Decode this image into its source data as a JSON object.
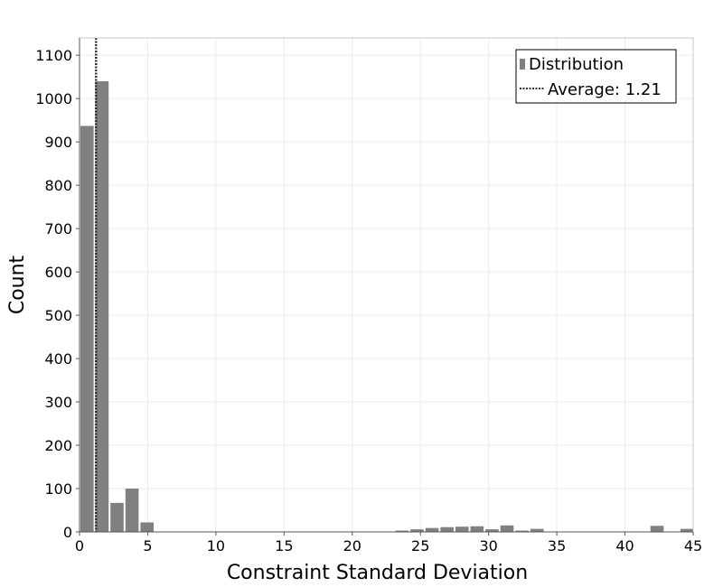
{
  "chart_data": {
    "type": "bar",
    "title": "",
    "xlabel": "Constraint Standard Deviation",
    "ylabel": "Count",
    "xlim": [
      0,
      45
    ],
    "ylim": [
      0,
      1140
    ],
    "x_ticks": [
      "0",
      "5",
      "10",
      "15",
      "20",
      "25",
      "30",
      "35",
      "40",
      "45"
    ],
    "y_ticks": [
      "0",
      "100",
      "200",
      "300",
      "400",
      "500",
      "600",
      "700",
      "800",
      "900",
      "1000",
      "1100"
    ],
    "grid": true,
    "legend_position": "top-right",
    "bin_width": 1.1,
    "series": [
      {
        "name": "Distribution",
        "bins": [
          {
            "x": 0.0,
            "value": 937
          },
          {
            "x": 1.1,
            "value": 1040
          },
          {
            "x": 2.2,
            "value": 67
          },
          {
            "x": 3.3,
            "value": 100
          },
          {
            "x": 4.4,
            "value": 22
          },
          {
            "x": 5.5,
            "value": 1
          },
          {
            "x": 23.1,
            "value": 3
          },
          {
            "x": 24.2,
            "value": 6
          },
          {
            "x": 25.3,
            "value": 9
          },
          {
            "x": 26.4,
            "value": 11
          },
          {
            "x": 27.5,
            "value": 12
          },
          {
            "x": 28.6,
            "value": 13
          },
          {
            "x": 29.7,
            "value": 6
          },
          {
            "x": 30.8,
            "value": 15
          },
          {
            "x": 31.9,
            "value": 3
          },
          {
            "x": 33.0,
            "value": 7
          },
          {
            "x": 41.8,
            "value": 14
          },
          {
            "x": 44.0,
            "value": 7
          }
        ],
        "color": "#808080"
      }
    ],
    "average": {
      "name": "Average: 1.21",
      "value": 1.21,
      "color": "#333333"
    }
  }
}
